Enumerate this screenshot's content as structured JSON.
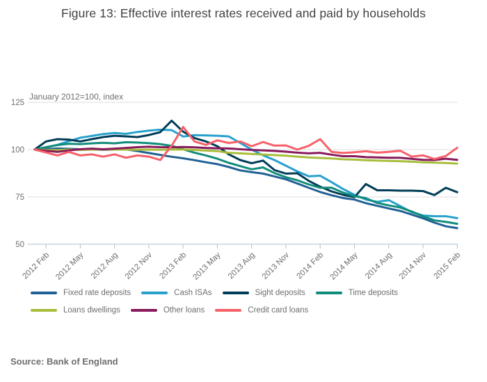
{
  "title": "Figure 13: Effective interest rates received and paid by households",
  "source": "Source: Bank of England",
  "colors": {
    "title_text": "#404245",
    "axis_text": "#6d6e71",
    "gridline": "#dcdcdc",
    "axis_line": "#a9bfd2",
    "background": "#ffffff"
  },
  "chart_data": {
    "type": "line",
    "title": "Figure 13: Effective interest rates received and paid by households",
    "subtitle": "January 2012=100, index",
    "grid": "horizontal",
    "legend_position": "bottom",
    "x_start": "2012 Jan",
    "x_end": "2015 Feb",
    "x_frequency": "monthly",
    "x_tick_labels": [
      "2012 Feb",
      "2012 May",
      "2012 Aug",
      "2012 Nov",
      "2013 Feb",
      "2013 May",
      "2013 Aug",
      "2013 Nov",
      "2014 Feb",
      "2014 May",
      "2014 Aug",
      "2014 Nov",
      "2015 Feb"
    ],
    "y_ticks": [
      125,
      100,
      75,
      50
    ],
    "ylim": [
      50,
      125
    ],
    "series": [
      {
        "name": "Fixed rate deposits",
        "color": "#206095",
        "values": [
          100,
          100.3,
          100.6,
          100.4,
          100.2,
          100.1,
          99.9,
          100,
          100.1,
          99.2,
          98.2,
          97.2,
          96.2,
          95.4,
          94.4,
          93.3,
          92.3,
          90.8,
          89,
          88.1,
          87.3,
          85.8,
          84.3,
          82.1,
          79.8,
          77.6,
          75.9,
          74.4,
          73.6,
          71.7,
          70.3,
          68.9,
          67.6,
          65.7,
          63.7,
          61.4,
          59.5,
          58.5
        ]
      },
      {
        "name": "Cash ISAs",
        "color": "#27a0cc",
        "values": [
          100,
          101.2,
          102.5,
          104.5,
          106.3,
          107.2,
          108.2,
          108.8,
          108.3,
          109.3,
          110,
          110.5,
          110.3,
          106.9,
          107.6,
          107.5,
          107.3,
          107,
          103.5,
          100,
          97,
          94.5,
          91.5,
          88.5,
          85.9,
          86.2,
          82.8,
          79.2,
          76.1,
          73.6,
          72.4,
          73.3,
          70.2,
          67,
          65.2,
          64.8,
          64.8,
          63.8
        ]
      },
      {
        "name": "Sight deposits",
        "color": "#003c57",
        "values": [
          100,
          104.3,
          105.5,
          105.3,
          104.3,
          105.5,
          106.6,
          107.3,
          107,
          106.6,
          107.7,
          109.2,
          115.3,
          109.5,
          106.1,
          104.3,
          101.8,
          97.5,
          94.5,
          92.8,
          94.2,
          89.2,
          87.3,
          87.5,
          83.5,
          80.4,
          77.9,
          76.1,
          74.9,
          81.8,
          78.5,
          78.5,
          78.3,
          78.3,
          78.1,
          76,
          79.8,
          77.5
        ]
      },
      {
        "name": "Time deposits",
        "color": "#118c7b",
        "values": [
          100,
          101.3,
          102.4,
          103.1,
          102.9,
          103.3,
          103.6,
          103.3,
          103.9,
          103.7,
          103.4,
          102.9,
          102,
          100.2,
          98.4,
          96.9,
          95.2,
          93,
          91.3,
          89.6,
          90.6,
          87.6,
          85.4,
          83.8,
          81.6,
          79.8,
          79.9,
          77.3,
          75.4,
          74.3,
          71.8,
          70.5,
          69.4,
          67.3,
          64.8,
          62.6,
          61.8,
          60.8
        ]
      },
      {
        "name": "Loans dwellings",
        "color": "#a8bd3a",
        "values": [
          100,
          99.8,
          99.7,
          100,
          99.8,
          100,
          100.1,
          100,
          100,
          99.9,
          100,
          99.9,
          100,
          100.1,
          99.8,
          99.5,
          99.2,
          98.3,
          98,
          97.7,
          97.4,
          97.1,
          96.8,
          96.3,
          95.9,
          95.6,
          95.3,
          94.9,
          94.7,
          94.4,
          94.2,
          94,
          93.9,
          93.6,
          93.3,
          93.1,
          92.9,
          92.6
        ]
      },
      {
        "name": "Other loans",
        "color": "#871a5b",
        "values": [
          100,
          99.4,
          98.8,
          99.6,
          100.2,
          100.5,
          100.2,
          100.5,
          100.9,
          101.3,
          101.5,
          101.3,
          101.2,
          101.4,
          101.2,
          100.9,
          100.7,
          100.6,
          100.2,
          99.8,
          99.6,
          99.3,
          98.9,
          98.4,
          98,
          98.3,
          97.3,
          96.5,
          96.5,
          96,
          95.9,
          95.7,
          95.7,
          95.1,
          94.6,
          94.5,
          95.2,
          94.6
        ]
      },
      {
        "name": "Credit card loans",
        "color": "#f66068",
        "values": [
          100,
          98.5,
          96.9,
          98.8,
          96.9,
          97.5,
          96.3,
          97.5,
          95.7,
          96.9,
          96.3,
          94.5,
          102,
          112,
          104.3,
          102.5,
          104.9,
          103.5,
          104.3,
          101.8,
          104,
          102.1,
          102.2,
          100,
          102,
          105.5,
          98.8,
          98.2,
          98.6,
          99.1,
          98.4,
          98.8,
          99.4,
          96.3,
          97,
          95,
          96.6,
          101
        ]
      }
    ],
    "legend_rows": [
      [
        0,
        1,
        2,
        3
      ],
      [
        4,
        5,
        6
      ]
    ]
  }
}
